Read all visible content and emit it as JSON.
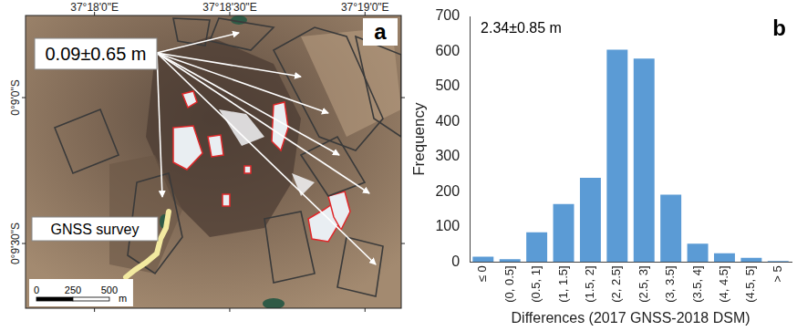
{
  "map": {
    "panel_label": "a",
    "xlim": [
      37.29575,
      37.3189
    ],
    "ylim": [
      -0.16203,
      -0.14531
    ],
    "xticks": [
      {
        "value": 37.3,
        "label": "37°18'0\"E"
      },
      {
        "value": 37.308333,
        "label": "37°18'30\"E"
      },
      {
        "value": 37.316667,
        "label": "37°19'0\"E"
      }
    ],
    "yticks": [
      {
        "value": -0.15,
        "label": "0°9'0\"S"
      },
      {
        "value": -0.158333,
        "label": "0°9'30\"S"
      }
    ],
    "annotation": "0.09±0.65 m",
    "survey_label": "GNSS survey",
    "scale_bar": {
      "ticks": [
        0,
        250,
        500
      ],
      "unit": "m"
    }
  },
  "chart_data": {
    "type": "bar",
    "panel_label": "b",
    "annotation": "2.34±0.85 m",
    "x_label": "Differences (2017 GNSS-2018 DSM)",
    "y_label": "Frequency",
    "categories": [
      "≤ 0",
      "(0, 0.5]",
      "(0.5, 1]",
      "(1, 1.5]",
      "(1.5, 2]",
      "(2, 2.5]",
      "(2.5, 3]",
      "(3, 3.5]",
      "(3.5, 4]",
      "(4, 4.5]",
      "(4.5, 5]",
      "> 5"
    ],
    "values": [
      15,
      8,
      85,
      165,
      240,
      605,
      580,
      192,
      52,
      25,
      12,
      3
    ],
    "color": "#5b9bd5",
    "ylim": [
      0,
      700
    ],
    "yticks": [
      0,
      100,
      200,
      300,
      400,
      500,
      600,
      700
    ],
    "grid": false
  }
}
